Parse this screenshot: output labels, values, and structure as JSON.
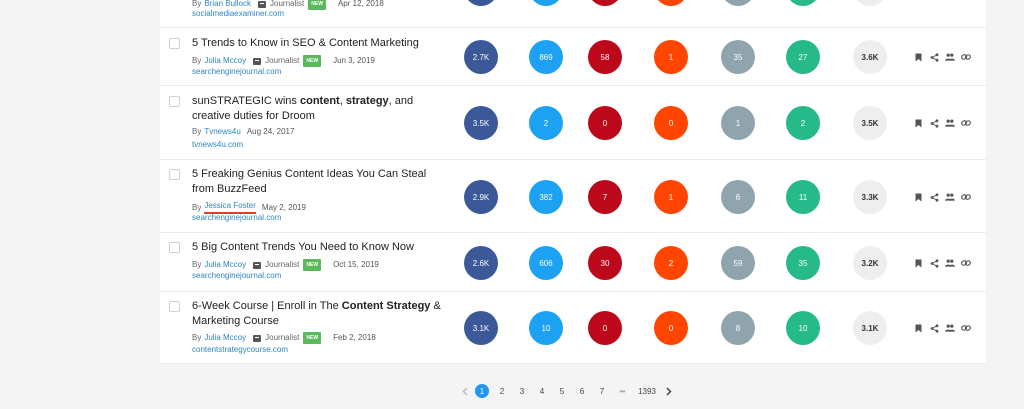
{
  "top_partial": {
    "author": "Brian Bullock",
    "journalist_label": "Journalist",
    "badge": "NEW",
    "date": "Apr 12, 2018",
    "domain": "socialmediaexaminer.com"
  },
  "by_prefix": "By",
  "journalist_label": "Journalist",
  "badge": "NEW",
  "rows": [
    {
      "title_parts": [
        {
          "t": "5 Trends to Know in SEO & Content Marketing",
          "b": false
        }
      ],
      "author": "Julia Mccoy",
      "journalist": true,
      "date": "Jun 3, 2019",
      "domain": "searchenginejournal.com",
      "stats": [
        "2.7K",
        "869",
        "58",
        "1",
        "35",
        "27",
        "3.6K"
      ]
    },
    {
      "title_parts": [
        {
          "t": "sunSTRATEGIC wins ",
          "b": false
        },
        {
          "t": "content",
          "b": true
        },
        {
          "t": ", ",
          "b": false
        },
        {
          "t": "strategy",
          "b": true
        },
        {
          "t": ", and creative duties for Droom",
          "b": false
        }
      ],
      "author": "Tvnews4u",
      "journalist": false,
      "date": "Aug 24, 2017",
      "domain": "tvnews4u.com",
      "stats": [
        "3.5K",
        "2",
        "0",
        "0",
        "1",
        "2",
        "3.5K"
      ]
    },
    {
      "title_parts": [
        {
          "t": "5 Freaking Genius Content Ideas You Can Steal from BuzzFeed",
          "b": false
        }
      ],
      "author": "Jessica Foster",
      "journalist": false,
      "date": "May 2, 2019",
      "domain": "searchenginejournal.com",
      "author_underline": true,
      "stats": [
        "2.9K",
        "382",
        "7",
        "1",
        "6",
        "11",
        "3.3K"
      ]
    },
    {
      "title_parts": [
        {
          "t": "5 Big Content Trends You Need to Know Now",
          "b": false
        }
      ],
      "author": "Julia Mccoy",
      "journalist": true,
      "date": "Oct 15, 2019",
      "domain": "searchenginejournal.com",
      "stats": [
        "2.6K",
        "606",
        "30",
        "2",
        "59",
        "35",
        "3.2K"
      ]
    },
    {
      "title_parts": [
        {
          "t": "6-Week Course | Enroll in The ",
          "b": false
        },
        {
          "t": "Content Strategy",
          "b": true
        },
        {
          "t": " & Marketing Course",
          "b": false
        }
      ],
      "author": "Julia Mccoy",
      "journalist": true,
      "date": "Feb 2, 2018",
      "domain": "contentstrategycourse.com",
      "stats": [
        "3.1K",
        "10",
        "0",
        "0",
        "8",
        "10",
        "3.1K"
      ]
    }
  ],
  "icons": {
    "actions": [
      "bookmark-icon",
      "share-icon",
      "people-icon",
      "link-icon"
    ],
    "pager": [
      "chevron-left-icon",
      "chevron-right-icon"
    ]
  },
  "colors": {
    "facebook": "#3b5998",
    "twitter": "#1da1f2",
    "pinterest": "#bd081c",
    "reddit": "#ff4500",
    "numbers": "#90a4ae",
    "evergreen": "#26b98a",
    "accent": "#2196f3"
  },
  "pagination": {
    "pages": [
      "1",
      "2",
      "3",
      "4",
      "5",
      "6",
      "7"
    ],
    "current": "1",
    "ellipsis": "•••",
    "last": "1393"
  }
}
